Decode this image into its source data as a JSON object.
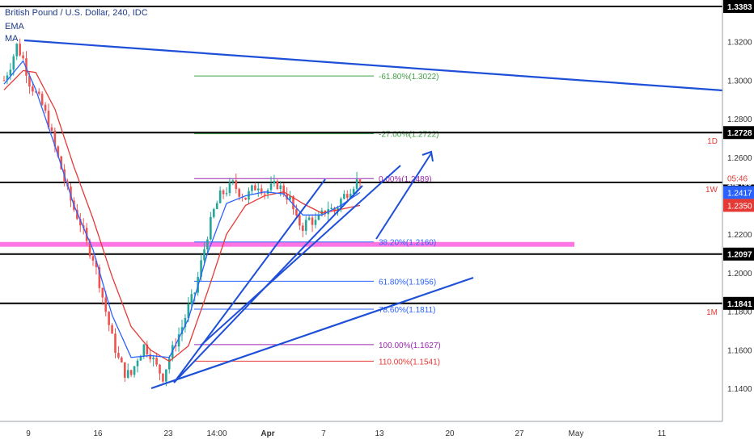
{
  "header": {
    "title": "British Pound / U.S. Dollar, 240, IDC",
    "indicator1": "EMA",
    "indicator2": "MA"
  },
  "colors": {
    "up": "#26a69a",
    "down": "#ef5350",
    "trend": "#1d4fd8",
    "ema": "#2962ff",
    "ma": "#e53935",
    "magenta": "#ff66e0",
    "fib_ext": "#43a047",
    "fib_top": "#9c27b0",
    "fib_ret": "#2962ff",
    "fib_ret_low": "#9c27b0",
    "fib_110": "#e53935"
  },
  "chart_data": {
    "type": "candlestick",
    "symbol": "GBPUSD",
    "timeframe": "240",
    "ylim": [
      1.128,
      1.339
    ],
    "x_ticks": [
      "9",
      "16",
      "23",
      "14:00",
      "Apr",
      "7",
      "13",
      "20",
      "27",
      "May",
      "11"
    ],
    "price_axis_labels": [
      "1.3200",
      "1.3000",
      "1.2800",
      "1.2600",
      "1.2200",
      "1.2000",
      "1.1800",
      "1.1600",
      "1.1400"
    ],
    "horizontal_levels": [
      {
        "price": 1.3383,
        "label": "1.3383",
        "tf": ""
      },
      {
        "price": 1.2728,
        "label": "1.2728",
        "tf": "1D"
      },
      {
        "price": 1.2469,
        "label": "1.2469",
        "tf": "1W"
      },
      {
        "price": 1.2097,
        "label": "1.2097",
        "tf": ""
      },
      {
        "price": 1.1841,
        "label": "1.1841",
        "tf": "1M"
      }
    ],
    "price_tags": [
      {
        "text": "05:46",
        "price": 1.2492,
        "style": "countdown"
      },
      {
        "text": "1.2417",
        "price": 1.2417,
        "style": "ema"
      },
      {
        "text": "1.2350",
        "price": 1.235,
        "style": "ma"
      }
    ],
    "magenta_zone": [
      1.2135,
      1.216
    ],
    "fib_extension": [
      {
        "label": "-61.80%(1.3022)",
        "price": 1.3022
      },
      {
        "label": "-27.00%(1.2722)",
        "price": 1.2722
      },
      {
        "label": "0.00%(1.2489)",
        "price": 1.2489
      }
    ],
    "fib_retracement": [
      {
        "label": "38.20%(1.2160)",
        "price": 1.216
      },
      {
        "label": "61.80%(1.1956)",
        "price": 1.1956
      },
      {
        "label": "78.60%(1.1811)",
        "price": 1.1811
      },
      {
        "label": "100.00%(1.1627)",
        "price": 1.1627
      },
      {
        "label": "110.00%(1.1541)",
        "price": 1.1541
      }
    ],
    "price_path": [
      [
        0,
        1.3
      ],
      [
        2,
        1.308
      ],
      [
        4,
        1.318
      ],
      [
        6,
        1.311
      ],
      [
        8,
        1.299
      ],
      [
        10,
        1.293
      ],
      [
        12,
        1.287
      ],
      [
        14,
        1.278
      ],
      [
        16,
        1.265
      ],
      [
        18,
        1.254
      ],
      [
        20,
        1.242
      ],
      [
        22,
        1.233
      ],
      [
        24,
        1.226
      ],
      [
        26,
        1.215
      ],
      [
        28,
        1.208
      ],
      [
        30,
        1.195
      ],
      [
        32,
        1.18
      ],
      [
        34,
        1.166
      ],
      [
        36,
        1.155
      ],
      [
        38,
        1.148
      ],
      [
        40,
        1.147
      ],
      [
        42,
        1.156
      ],
      [
        44,
        1.162
      ],
      [
        46,
        1.158
      ],
      [
        48,
        1.151
      ],
      [
        50,
        1.146
      ],
      [
        52,
        1.156
      ],
      [
        54,
        1.164
      ],
      [
        56,
        1.172
      ],
      [
        58,
        1.182
      ],
      [
        60,
        1.19
      ],
      [
        62,
        1.205
      ],
      [
        64,
        1.22
      ],
      [
        66,
        1.232
      ],
      [
        68,
        1.24
      ],
      [
        70,
        1.243
      ],
      [
        72,
        1.246
      ],
      [
        74,
        1.242
      ],
      [
        76,
        1.239
      ],
      [
        78,
        1.243
      ],
      [
        80,
        1.246
      ],
      [
        82,
        1.242
      ],
      [
        84,
        1.244
      ],
      [
        86,
        1.246
      ],
      [
        88,
        1.242
      ],
      [
        90,
        1.238
      ],
      [
        92,
        1.227
      ],
      [
        94,
        1.224
      ],
      [
        96,
        1.228
      ],
      [
        98,
        1.226
      ],
      [
        100,
        1.23
      ],
      [
        102,
        1.234
      ],
      [
        104,
        1.232
      ],
      [
        106,
        1.238
      ],
      [
        108,
        1.242
      ],
      [
        110,
        1.246
      ],
      [
        112,
        1.249
      ]
    ],
    "ema_path": [
      [
        0,
        1.298
      ],
      [
        6,
        1.31
      ],
      [
        10,
        1.295
      ],
      [
        16,
        1.266
      ],
      [
        22,
        1.235
      ],
      [
        28,
        1.212
      ],
      [
        34,
        1.178
      ],
      [
        40,
        1.156
      ],
      [
        46,
        1.157
      ],
      [
        52,
        1.156
      ],
      [
        58,
        1.176
      ],
      [
        64,
        1.21
      ],
      [
        70,
        1.236
      ],
      [
        76,
        1.24
      ],
      [
        82,
        1.242
      ],
      [
        88,
        1.241
      ],
      [
        94,
        1.23
      ],
      [
        100,
        1.23
      ],
      [
        106,
        1.235
      ],
      [
        112,
        1.2417
      ]
    ],
    "ma_path": [
      [
        0,
        1.295
      ],
      [
        6,
        1.305
      ],
      [
        10,
        1.304
      ],
      [
        16,
        1.285
      ],
      [
        22,
        1.255
      ],
      [
        28,
        1.228
      ],
      [
        34,
        1.198
      ],
      [
        40,
        1.172
      ],
      [
        46,
        1.16
      ],
      [
        52,
        1.154
      ],
      [
        58,
        1.162
      ],
      [
        64,
        1.19
      ],
      [
        70,
        1.22
      ],
      [
        76,
        1.235
      ],
      [
        82,
        1.24
      ],
      [
        88,
        1.242
      ],
      [
        94,
        1.236
      ],
      [
        100,
        1.231
      ],
      [
        106,
        1.233
      ],
      [
        112,
        1.235
      ]
    ]
  }
}
